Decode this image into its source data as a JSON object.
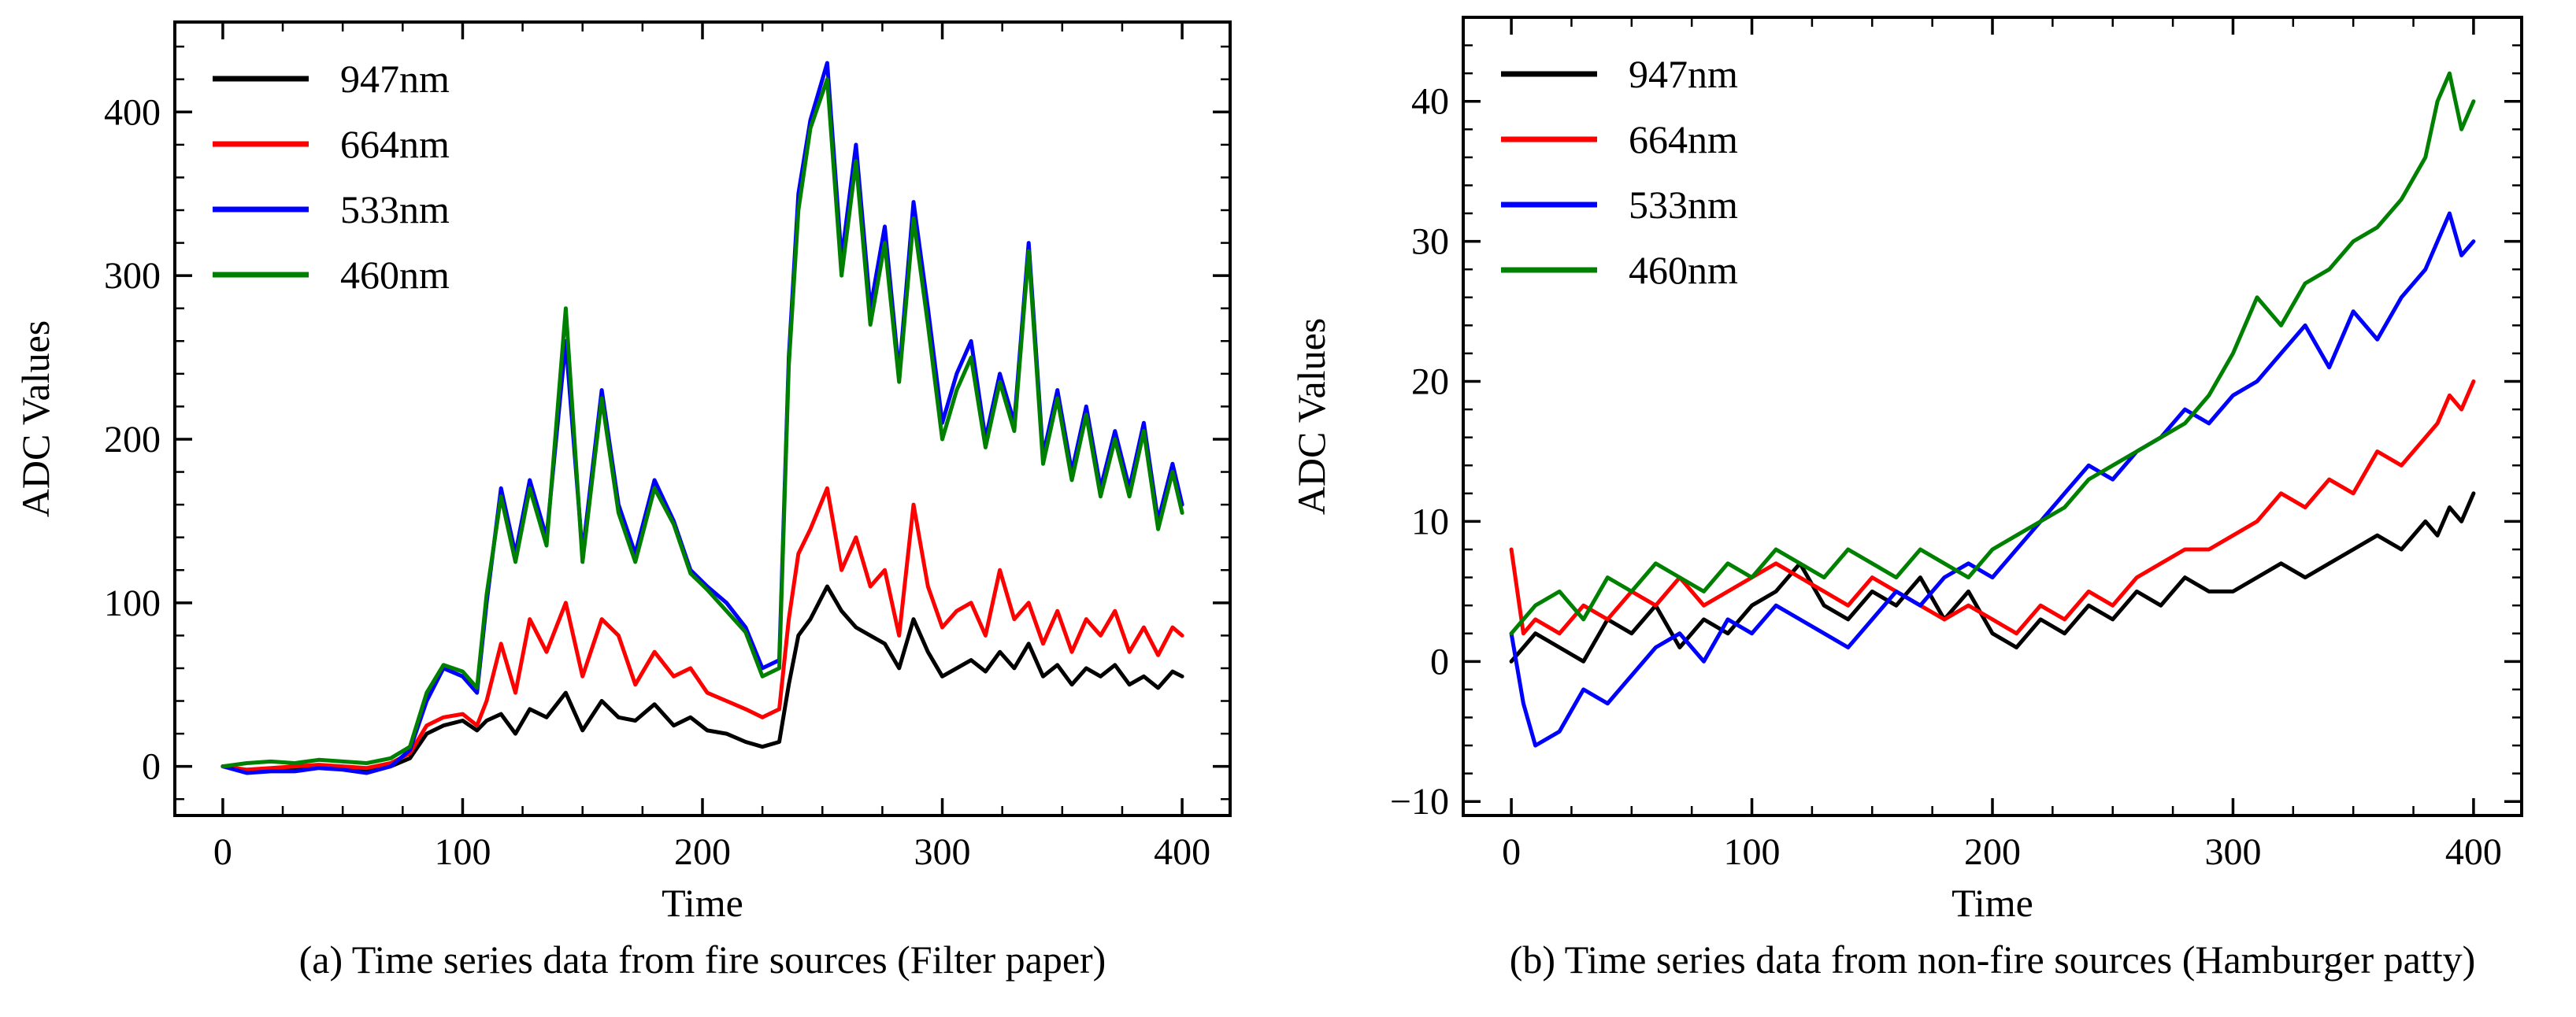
{
  "chart_data": [
    {
      "id": "a",
      "type": "line",
      "caption": "(a) Time series data from fire sources (Filter paper)",
      "xlabel": "Time",
      "ylabel": "ADC Values",
      "xlim": [
        -20,
        420
      ],
      "ylim": [
        -30,
        455
      ],
      "xticks": [
        0,
        100,
        200,
        300,
        400
      ],
      "xtick_labels": [
        "0",
        "100",
        "200",
        "300",
        "400"
      ],
      "yticks": [
        0,
        100,
        200,
        300,
        400
      ],
      "ytick_labels": [
        "0",
        "100",
        "200",
        "300",
        "400"
      ],
      "legend_position": "top-left",
      "x": [
        0,
        10,
        20,
        30,
        40,
        50,
        60,
        70,
        78,
        85,
        92,
        100,
        106,
        110,
        116,
        122,
        128,
        135,
        143,
        150,
        158,
        165,
        172,
        180,
        188,
        195,
        202,
        210,
        218,
        225,
        232,
        236,
        240,
        245,
        252,
        258,
        264,
        270,
        276,
        282,
        288,
        294,
        300,
        306,
        312,
        318,
        324,
        330,
        336,
        342,
        348,
        354,
        360,
        366,
        372,
        378,
        384,
        390,
        396,
        400
      ],
      "series": [
        {
          "name": "947nm",
          "color": "#000000",
          "values": [
            0,
            -3,
            -2,
            -1,
            0,
            -1,
            -2,
            0,
            5,
            20,
            25,
            28,
            22,
            28,
            32,
            20,
            35,
            30,
            45,
            22,
            40,
            30,
            28,
            38,
            25,
            30,
            22,
            20,
            15,
            12,
            15,
            50,
            80,
            90,
            110,
            95,
            85,
            80,
            75,
            60,
            90,
            70,
            55,
            60,
            65,
            58,
            70,
            60,
            75,
            55,
            62,
            50,
            60,
            55,
            62,
            50,
            55,
            48,
            58,
            55
          ]
        },
        {
          "name": "664nm",
          "color": "#ff0000",
          "values": [
            0,
            -2,
            -1,
            0,
            1,
            0,
            -1,
            2,
            8,
            25,
            30,
            32,
            25,
            40,
            75,
            45,
            90,
            70,
            100,
            55,
            90,
            80,
            50,
            70,
            55,
            60,
            45,
            40,
            35,
            30,
            35,
            90,
            130,
            145,
            170,
            120,
            140,
            110,
            120,
            80,
            160,
            110,
            85,
            95,
            100,
            80,
            120,
            90,
            100,
            75,
            95,
            70,
            90,
            80,
            95,
            70,
            85,
            68,
            85,
            80
          ]
        },
        {
          "name": "533nm",
          "color": "#0000ff",
          "values": [
            0,
            -4,
            -3,
            -3,
            -1,
            -2,
            -4,
            0,
            10,
            40,
            60,
            55,
            45,
            100,
            170,
            130,
            175,
            140,
            260,
            130,
            230,
            160,
            130,
            175,
            150,
            120,
            110,
            100,
            85,
            60,
            65,
            250,
            350,
            395,
            430,
            310,
            380,
            280,
            330,
            240,
            345,
            280,
            210,
            240,
            260,
            200,
            240,
            210,
            320,
            190,
            230,
            180,
            220,
            170,
            205,
            170,
            210,
            150,
            185,
            160
          ]
        },
        {
          "name": "460nm",
          "color": "#008000",
          "values": [
            0,
            2,
            3,
            2,
            4,
            3,
            2,
            5,
            12,
            45,
            62,
            58,
            48,
            105,
            165,
            125,
            170,
            135,
            280,
            125,
            225,
            155,
            125,
            170,
            148,
            118,
            108,
            95,
            82,
            55,
            60,
            245,
            340,
            390,
            420,
            300,
            370,
            270,
            320,
            235,
            335,
            270,
            200,
            230,
            250,
            195,
            235,
            205,
            315,
            185,
            225,
            175,
            215,
            165,
            200,
            165,
            205,
            145,
            180,
            155
          ]
        }
      ]
    },
    {
      "id": "b",
      "type": "line",
      "caption": "(b) Time series data from non-fire sources (Hamburger patty)",
      "xlabel": "Time",
      "ylabel": "ADC Values",
      "xlim": [
        -20,
        420
      ],
      "ylim": [
        -11,
        46
      ],
      "xticks": [
        0,
        100,
        200,
        300,
        400
      ],
      "xtick_labels": [
        "0",
        "100",
        "200",
        "300",
        "400"
      ],
      "yticks": [
        -10,
        0,
        10,
        20,
        30,
        40
      ],
      "ytick_labels": [
        "−10",
        "0",
        "10",
        "20",
        "30",
        "40"
      ],
      "legend_position": "top-left",
      "x": [
        0,
        5,
        10,
        20,
        30,
        40,
        50,
        60,
        70,
        80,
        90,
        100,
        110,
        120,
        130,
        140,
        150,
        160,
        170,
        180,
        190,
        200,
        210,
        220,
        230,
        240,
        250,
        260,
        270,
        280,
        290,
        300,
        310,
        320,
        330,
        340,
        350,
        360,
        370,
        380,
        385,
        390,
        395,
        400
      ],
      "series": [
        {
          "name": "947nm",
          "color": "#000000",
          "values": [
            0,
            1,
            2,
            1,
            0,
            3,
            2,
            4,
            1,
            3,
            2,
            4,
            5,
            7,
            4,
            3,
            5,
            4,
            6,
            3,
            5,
            2,
            1,
            3,
            2,
            4,
            3,
            5,
            4,
            6,
            5,
            5,
            6,
            7,
            6,
            7,
            8,
            9,
            8,
            10,
            9,
            11,
            10,
            12
          ]
        },
        {
          "name": "664nm",
          "color": "#ff0000",
          "values": [
            8,
            2,
            3,
            2,
            4,
            3,
            5,
            4,
            6,
            4,
            5,
            6,
            7,
            6,
            5,
            4,
            6,
            5,
            4,
            3,
            4,
            3,
            2,
            4,
            3,
            5,
            4,
            6,
            7,
            8,
            8,
            9,
            10,
            12,
            11,
            13,
            12,
            15,
            14,
            16,
            17,
            19,
            18,
            20
          ]
        },
        {
          "name": "533nm",
          "color": "#0000ff",
          "values": [
            2,
            -3,
            -6,
            -5,
            -2,
            -3,
            -1,
            1,
            2,
            0,
            3,
            2,
            4,
            3,
            2,
            1,
            3,
            5,
            4,
            6,
            7,
            6,
            8,
            10,
            12,
            14,
            13,
            15,
            16,
            18,
            17,
            19,
            20,
            22,
            24,
            21,
            25,
            23,
            26,
            28,
            30,
            32,
            29,
            30
          ]
        },
        {
          "name": "460nm",
          "color": "#008000",
          "values": [
            2,
            3,
            4,
            5,
            3,
            6,
            5,
            7,
            6,
            5,
            7,
            6,
            8,
            7,
            6,
            8,
            7,
            6,
            8,
            7,
            6,
            8,
            9,
            10,
            11,
            13,
            14,
            15,
            16,
            17,
            19,
            22,
            26,
            24,
            27,
            28,
            30,
            31,
            33,
            36,
            40,
            42,
            38,
            40
          ]
        }
      ]
    }
  ]
}
